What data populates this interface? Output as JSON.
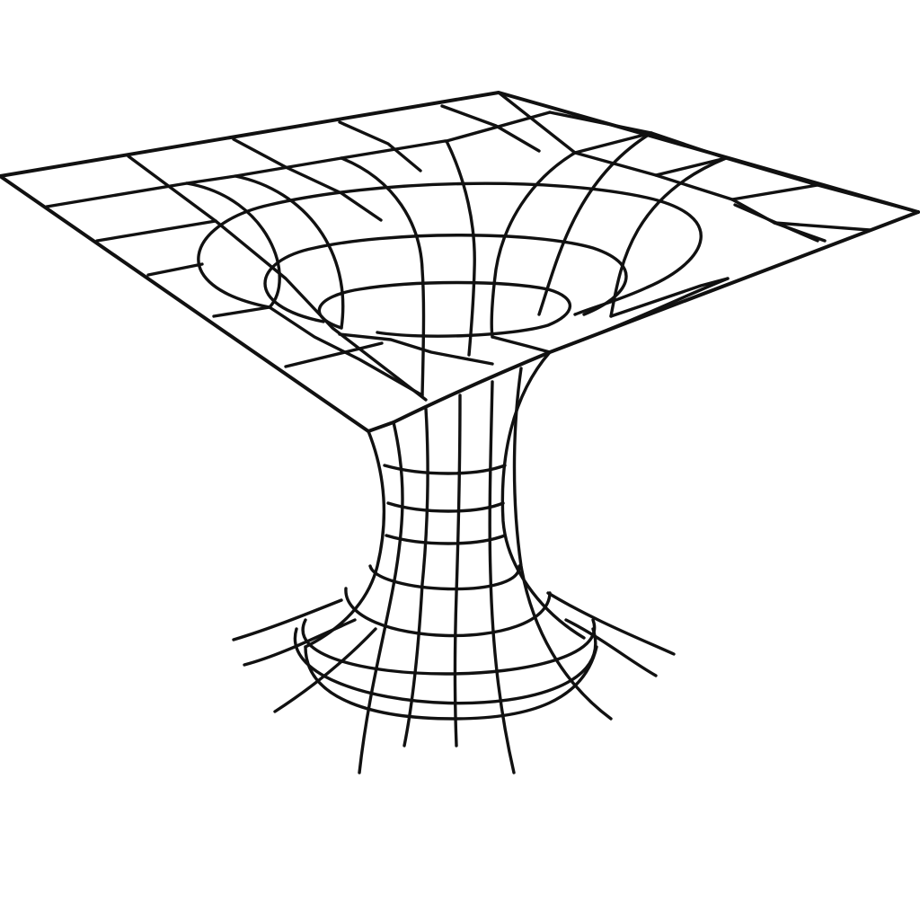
{
  "figure": {
    "subject": "",
    "background_color": "#ffffff",
    "line_color": "#111111",
    "text": []
  }
}
